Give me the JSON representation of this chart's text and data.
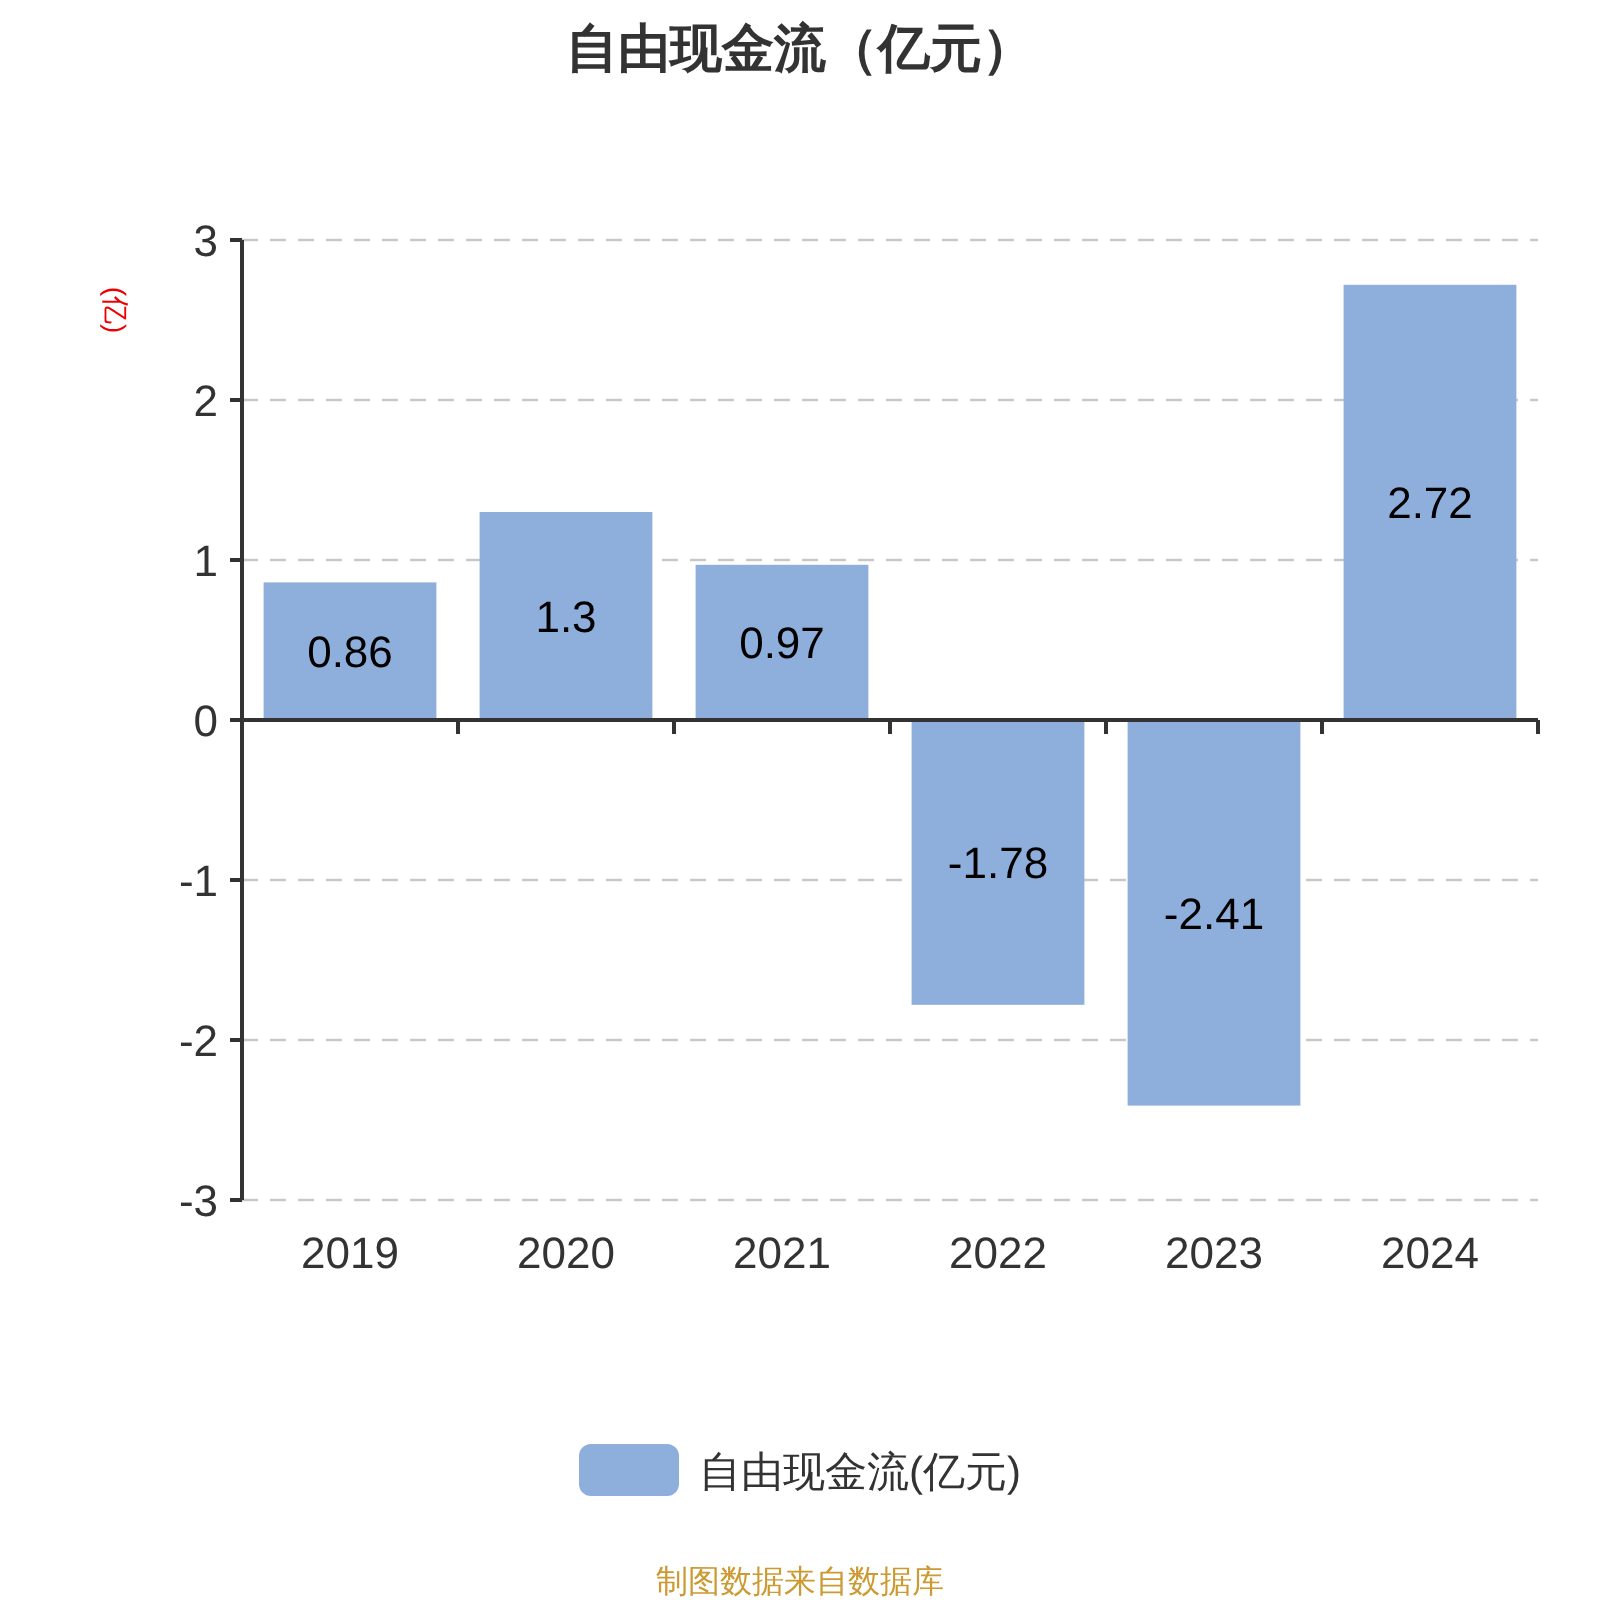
{
  "chart_data": {
    "type": "bar",
    "title": "自由现金流（亿元）",
    "ylabel": "(亿)",
    "categories": [
      "2019",
      "2020",
      "2021",
      "2022",
      "2023",
      "2024"
    ],
    "series": [
      {
        "name": "自由现金流(亿元)",
        "color": "#8eaedb",
        "values": [
          0.86,
          1.3,
          0.97,
          -1.78,
          -2.41,
          2.72
        ]
      }
    ],
    "ylim": [
      -3,
      3
    ],
    "yticks": [
      -3,
      -2,
      -1,
      0,
      1,
      2,
      3
    ],
    "grid": "y",
    "legend": "bottom",
    "data_labels": true,
    "annotations": [
      "制图数据来自数据库"
    ]
  }
}
